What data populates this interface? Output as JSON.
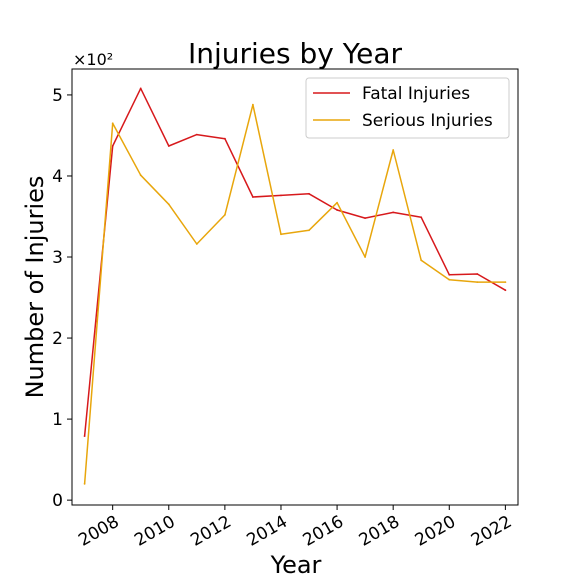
{
  "chart_data": {
    "type": "line",
    "title": "Injuries by Year",
    "xlabel": "Year",
    "ylabel": "Number of Injuries",
    "y_offset_label": "×10²",
    "y_multiplier": 100,
    "xlim": [
      2006.55,
      2022.45
    ],
    "ylim": [
      -0.06,
      5.32
    ],
    "x_ticks": [
      2008,
      2010,
      2012,
      2014,
      2016,
      2018,
      2020,
      2022
    ],
    "x_tick_labels": [
      "2008",
      "2010",
      "2012",
      "2014",
      "2016",
      "2018",
      "2020",
      "2022"
    ],
    "y_ticks": [
      0,
      1,
      2,
      3,
      4,
      5
    ],
    "y_tick_labels": [
      "0",
      "1",
      "2",
      "3",
      "4",
      "5"
    ],
    "grid": false,
    "legend_position": "top-right",
    "x": [
      2007,
      2008,
      2009,
      2010,
      2011,
      2012,
      2013,
      2014,
      2015,
      2016,
      2017,
      2018,
      2019,
      2020,
      2021,
      2022
    ],
    "series": [
      {
        "name": "Fatal Injuries",
        "color": "#d7191c",
        "values": [
          0.79,
          4.37,
          5.08,
          4.37,
          4.51,
          4.46,
          3.74,
          3.76,
          3.78,
          3.58,
          3.48,
          3.55,
          3.49,
          2.78,
          2.79,
          2.59
        ]
      },
      {
        "name": "Serious Injuries",
        "color": "#e8a60c",
        "values": [
          0.2,
          4.65,
          4.01,
          3.65,
          3.16,
          3.52,
          4.88,
          3.28,
          3.33,
          3.67,
          3.0,
          4.32,
          2.96,
          2.72,
          2.69,
          2.69
        ]
      }
    ]
  }
}
